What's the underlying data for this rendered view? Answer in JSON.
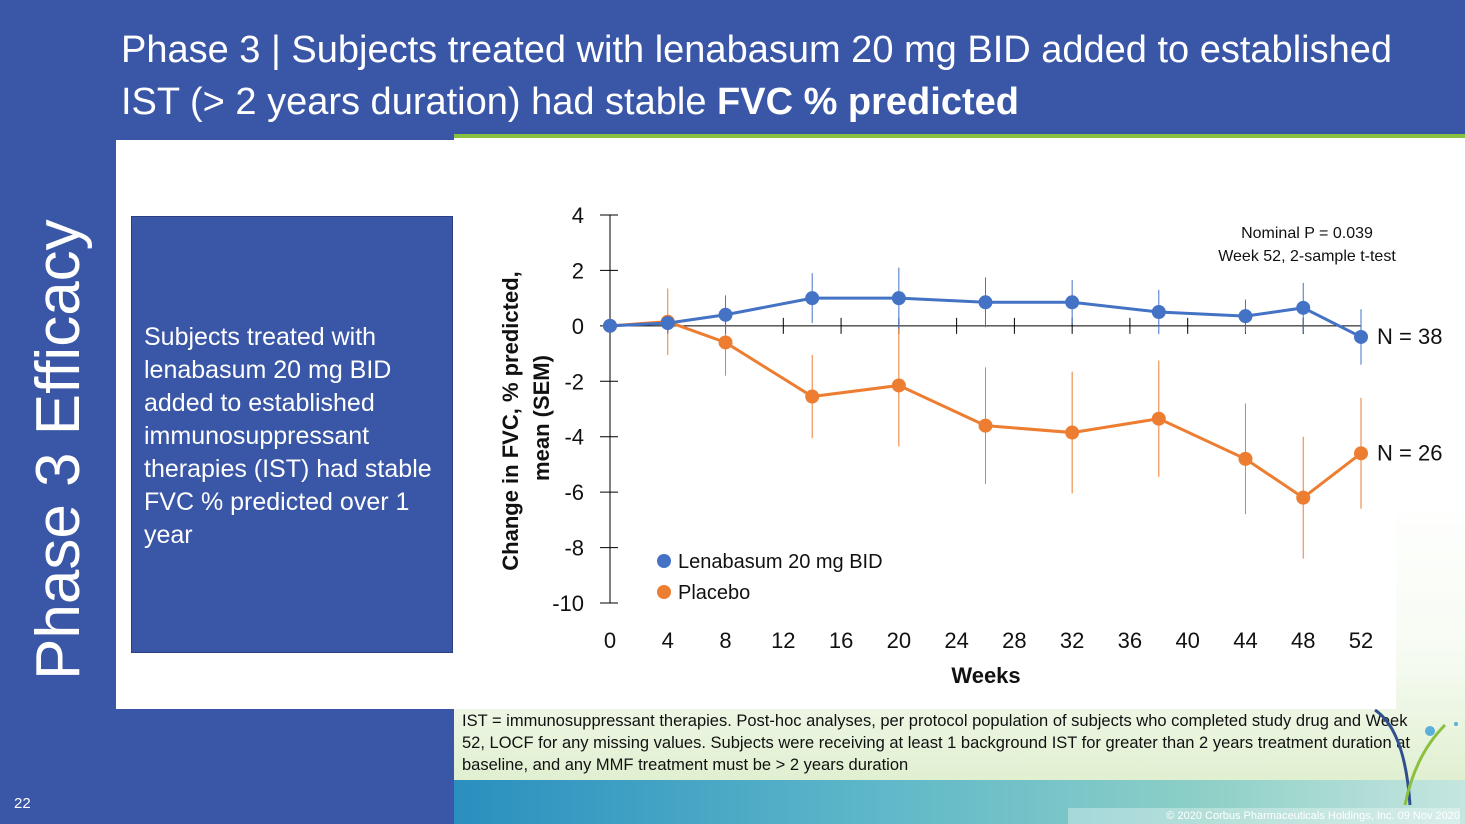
{
  "slide": {
    "title_regular": "Phase 3  |  Subjects treated with lenabasum 20 mg BID added to established IST (> 2 years duration) had stable ",
    "title_bold": "FVC % predicted",
    "section_label": "Phase 3 Efficacy",
    "summary": "Subjects treated with lenabasum 20 mg BID added to established immunosuppressant therapies (IST) had stable FVC % predicted over 1 year",
    "footnote": "IST = immunosuppressant therapies.  Post-hoc analyses, per protocol population of subjects who completed study drug and Week 52, LOCF for any missing values.  Subjects were receiving at least 1 background IST for greater than 2 years treatment duration at baseline, and any MMF treatment must be > 2 years duration",
    "page_number": "22",
    "copyright": "© 2020 Corbus Pharmaceuticals Holdings, Inc. 09 Nov 2020"
  },
  "colors": {
    "slide_blue": "#3a56a6",
    "lenabasum": "#4472c4",
    "placebo": "#ed7d31",
    "accent_green": "#8bbf3f"
  },
  "chart_data": {
    "type": "line",
    "x": [
      0,
      4,
      8,
      14,
      20,
      26,
      32,
      38,
      44,
      48,
      52
    ],
    "series": [
      {
        "name": "Lenabasum 20 mg BID",
        "values": [
          0,
          0.1,
          0.4,
          1.0,
          1.0,
          0.85,
          0.85,
          0.5,
          0.35,
          0.65,
          -0.4
        ],
        "sem": [
          0,
          0.3,
          0.7,
          0.9,
          1.1,
          0.9,
          0.8,
          0.8,
          0.6,
          0.9,
          1.0
        ],
        "n_label": "N = 38",
        "color": "#4472c4"
      },
      {
        "name": "Placebo",
        "values": [
          0,
          0.15,
          -0.6,
          -2.55,
          -2.15,
          -3.6,
          -3.85,
          -3.35,
          -4.8,
          -6.2,
          -4.6
        ],
        "sem": [
          0,
          1.2,
          1.2,
          1.5,
          2.2,
          2.1,
          2.2,
          2.1,
          2.0,
          2.2,
          2.0
        ],
        "n_label": "N = 26",
        "color": "#ed7d31"
      }
    ],
    "xlabel": "Weeks",
    "ylabel_line1": "Change in FVC, % predicted,",
    "ylabel_line2": "mean (SEM)",
    "xticks": [
      0,
      4,
      8,
      12,
      16,
      20,
      24,
      28,
      32,
      36,
      40,
      44,
      48,
      52
    ],
    "yticks": [
      4,
      2,
      0,
      -2,
      -4,
      -6,
      -8,
      -10
    ],
    "xlim": [
      0,
      52
    ],
    "ylim": [
      -10,
      4
    ],
    "annotation_line1": "Nominal P = 0.039",
    "annotation_line2": "Week 52, 2-sample t-test",
    "legend_position": "bottom-left",
    "grid": false
  }
}
